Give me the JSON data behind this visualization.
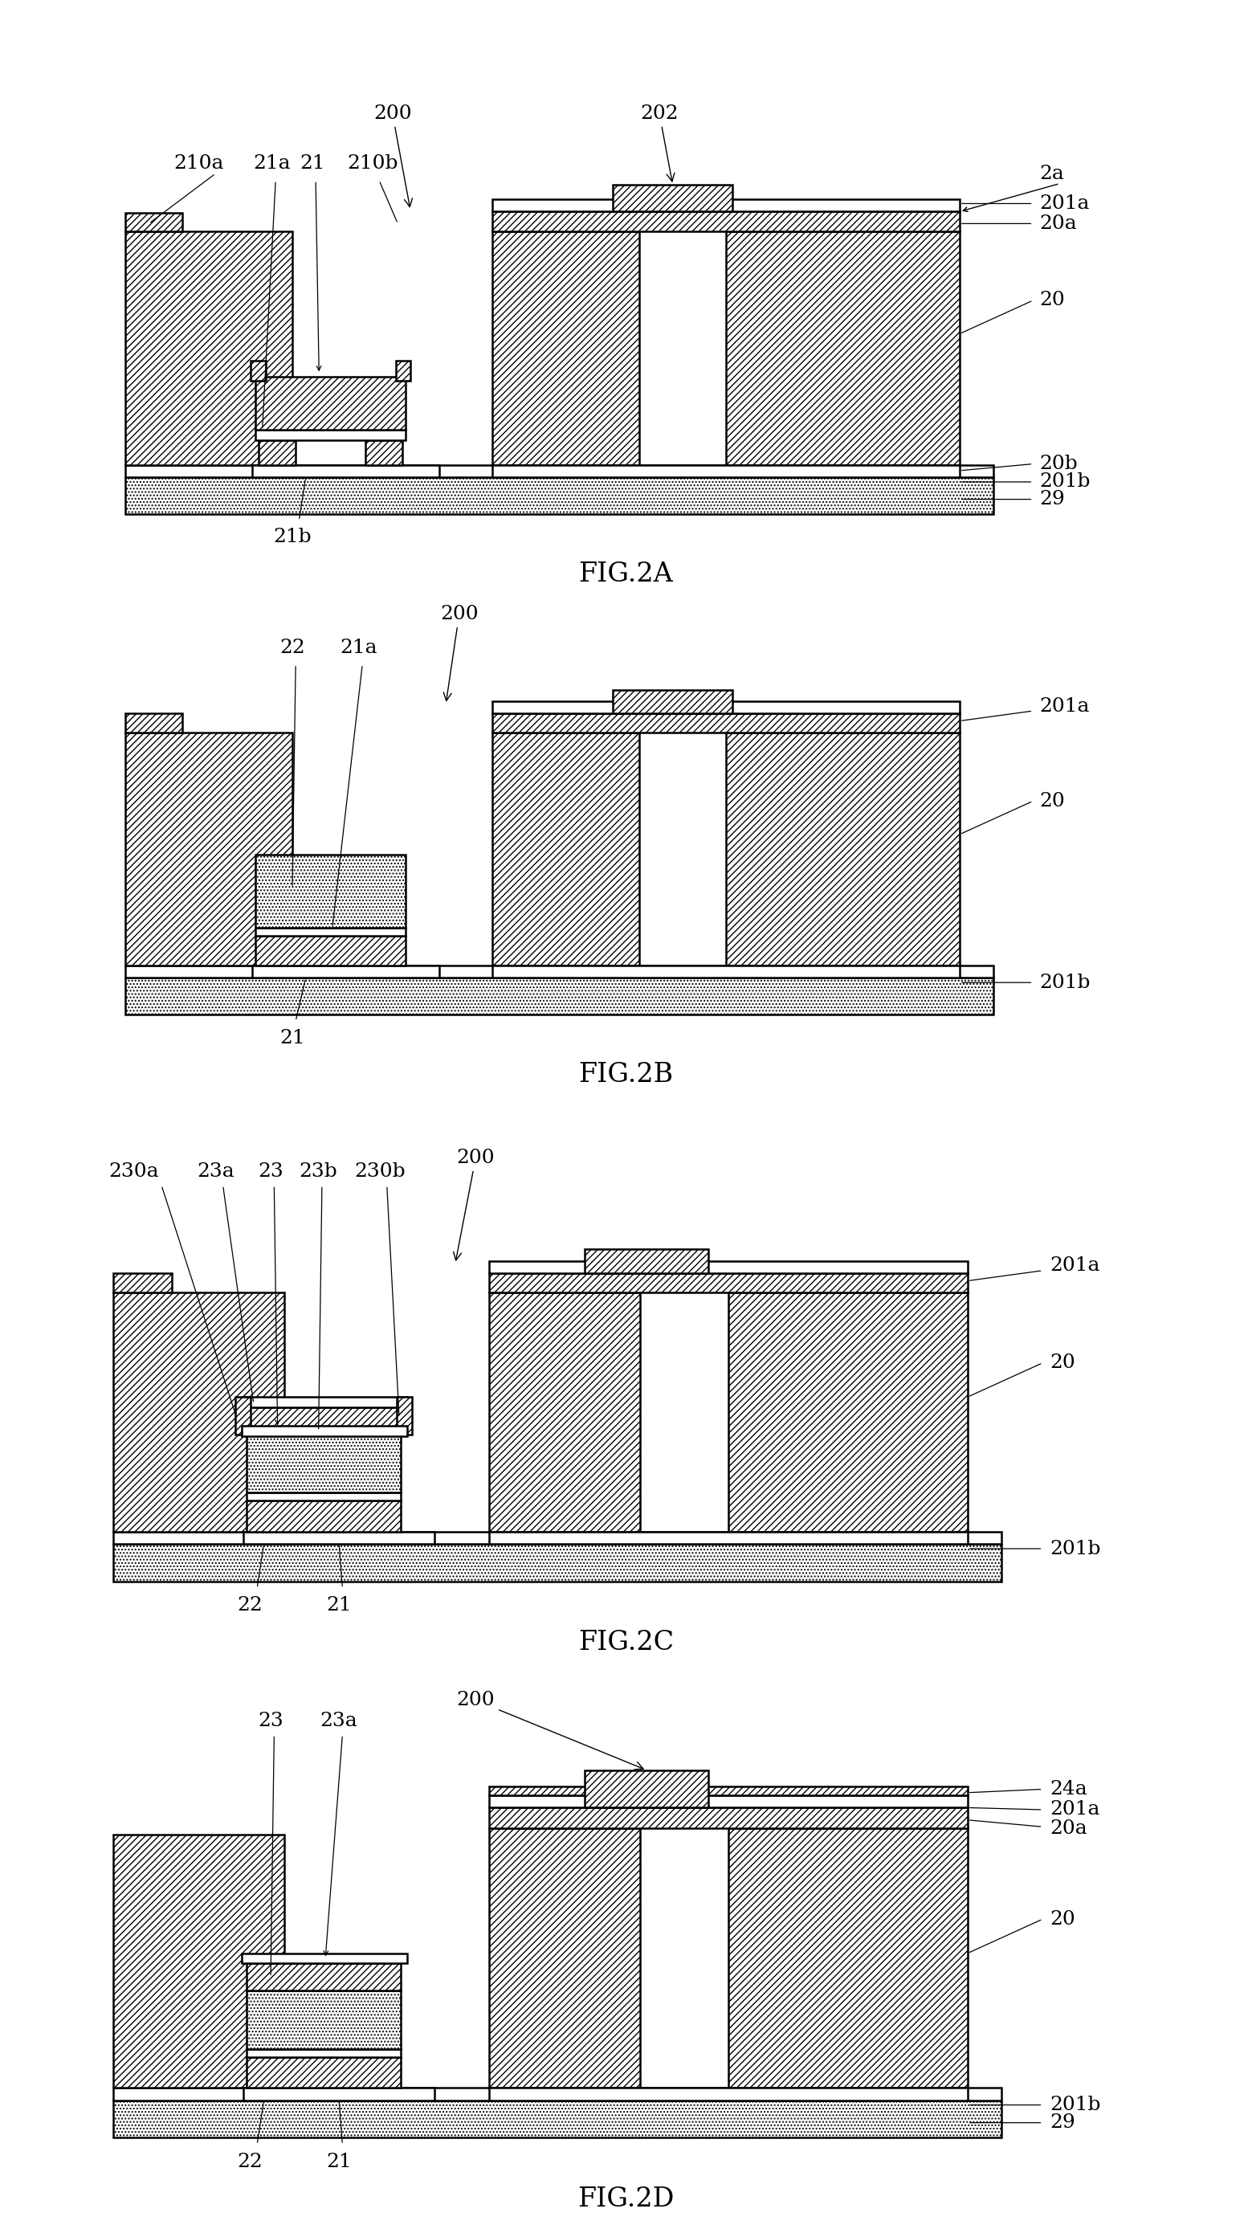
{
  "bg_color": "#ffffff",
  "line_color": "#000000",
  "figures": [
    "FIG.2A",
    "FIG.2B",
    "FIG.2C",
    "FIG.2D"
  ],
  "fig_label_fontsize": 24,
  "annot_fontsize": 18
}
